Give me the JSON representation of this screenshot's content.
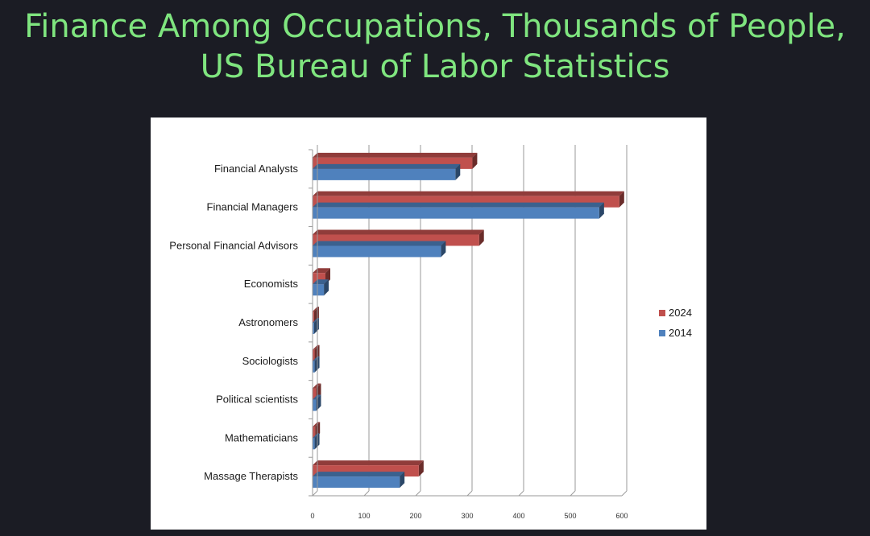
{
  "title": {
    "line1": "Finance Among Occupations, Thousands of People,",
    "line2": "US Bureau of Labor Statistics"
  },
  "chart_data": {
    "type": "bar",
    "orientation": "horizontal",
    "style": "3d",
    "categories": [
      "Financial Analysts",
      "Financial Managers",
      "Personal Financial Advisors",
      "Economists",
      "Astronomers",
      "Sociologists",
      "Political scientists",
      "Mathematicians",
      "Massage Therapists"
    ],
    "series": [
      {
        "name": "2024",
        "color": "#c0504d",
        "values": [
          310,
          595,
          323,
          25,
          3,
          4,
          7,
          5,
          206
        ]
      },
      {
        "name": "2014",
        "color": "#4f81bd",
        "values": [
          277,
          556,
          249,
          22,
          3,
          4,
          7,
          4,
          169
        ]
      }
    ],
    "xlim": [
      0,
      600
    ],
    "xticks": [
      "0",
      "100",
      "200",
      "300",
      "400",
      "500",
      "600"
    ],
    "grid": "vertical",
    "legend_position": "right"
  }
}
